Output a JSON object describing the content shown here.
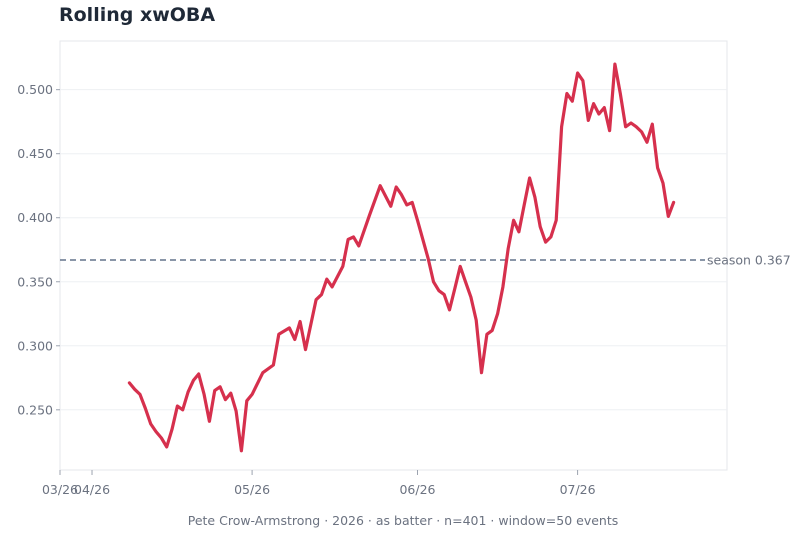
{
  "chart_data": {
    "type": "line",
    "title": "Rolling xwOBA",
    "footer": "Pete Crow-Armstrong · 2026 · as batter · n=401 · window=50 events",
    "x_range": [
      "2026-03-26",
      "2026-07-29"
    ],
    "x_ticks": [
      {
        "date": "2026-03-26",
        "label": "03/26"
      },
      {
        "date": "2026-04-01",
        "label": "04/26"
      },
      {
        "date": "2026-05-01",
        "label": "05/26"
      },
      {
        "date": "2026-06-01",
        "label": "06/26"
      },
      {
        "date": "2026-07-01",
        "label": "07/26"
      }
    ],
    "ylim": [
      0.203,
      0.538
    ],
    "y_ticks": [
      {
        "value": 0.25,
        "label": "0.250"
      },
      {
        "value": 0.3,
        "label": "0.300"
      },
      {
        "value": 0.35,
        "label": "0.350"
      },
      {
        "value": 0.4,
        "label": "0.400"
      },
      {
        "value": 0.45,
        "label": "0.450"
      },
      {
        "value": 0.5,
        "label": "0.500"
      }
    ],
    "grid": "horizontal",
    "reference_line": {
      "value": 0.367,
      "label": "season 0.367",
      "color": "#64748b"
    },
    "series": [
      {
        "color": "#d6304d",
        "points": [
          [
            "2026-04-08",
            0.271
          ],
          [
            "2026-04-09",
            0.266
          ],
          [
            "2026-04-10",
            0.262
          ],
          [
            "2026-04-11",
            0.251
          ],
          [
            "2026-04-12",
            0.239
          ],
          [
            "2026-04-13",
            0.233
          ],
          [
            "2026-04-14",
            0.228
          ],
          [
            "2026-04-15",
            0.221
          ],
          [
            "2026-04-16",
            0.235
          ],
          [
            "2026-04-17",
            0.253
          ],
          [
            "2026-04-18",
            0.25
          ],
          [
            "2026-04-19",
            0.264
          ],
          [
            "2026-04-20",
            0.273
          ],
          [
            "2026-04-21",
            0.278
          ],
          [
            "2026-04-22",
            0.262
          ],
          [
            "2026-04-23",
            0.241
          ],
          [
            "2026-04-24",
            0.265
          ],
          [
            "2026-04-25",
            0.268
          ],
          [
            "2026-04-26",
            0.258
          ],
          [
            "2026-04-27",
            0.263
          ],
          [
            "2026-04-28",
            0.249
          ],
          [
            "2026-04-29",
            0.218
          ],
          [
            "2026-04-30",
            0.257
          ],
          [
            "2026-05-01",
            0.262
          ],
          [
            "2026-05-03",
            0.279
          ],
          [
            "2026-05-05",
            0.285
          ],
          [
            "2026-05-06",
            0.309
          ],
          [
            "2026-05-08",
            0.314
          ],
          [
            "2026-05-09",
            0.305
          ],
          [
            "2026-05-10",
            0.319
          ],
          [
            "2026-05-11",
            0.297
          ],
          [
            "2026-05-13",
            0.336
          ],
          [
            "2026-05-14",
            0.34
          ],
          [
            "2026-05-15",
            0.352
          ],
          [
            "2026-05-16",
            0.346
          ],
          [
            "2026-05-18",
            0.362
          ],
          [
            "2026-05-19",
            0.383
          ],
          [
            "2026-05-20",
            0.385
          ],
          [
            "2026-05-21",
            0.378
          ],
          [
            "2026-05-23",
            0.402
          ],
          [
            "2026-05-25",
            0.425
          ],
          [
            "2026-05-26",
            0.417
          ],
          [
            "2026-05-27",
            0.409
          ],
          [
            "2026-05-28",
            0.424
          ],
          [
            "2026-05-29",
            0.418
          ],
          [
            "2026-05-30",
            0.41
          ],
          [
            "2026-05-31",
            0.412
          ],
          [
            "2026-06-01",
            0.398
          ],
          [
            "2026-06-03",
            0.368
          ],
          [
            "2026-06-04",
            0.35
          ],
          [
            "2026-06-05",
            0.343
          ],
          [
            "2026-06-06",
            0.34
          ],
          [
            "2026-06-07",
            0.328
          ],
          [
            "2026-06-08",
            0.345
          ],
          [
            "2026-06-09",
            0.362
          ],
          [
            "2026-06-10",
            0.35
          ],
          [
            "2026-06-11",
            0.338
          ],
          [
            "2026-06-12",
            0.32
          ],
          [
            "2026-06-13",
            0.279
          ],
          [
            "2026-06-14",
            0.309
          ],
          [
            "2026-06-15",
            0.312
          ],
          [
            "2026-06-16",
            0.325
          ],
          [
            "2026-06-17",
            0.346
          ],
          [
            "2026-06-18",
            0.376
          ],
          [
            "2026-06-19",
            0.398
          ],
          [
            "2026-06-20",
            0.389
          ],
          [
            "2026-06-21",
            0.41
          ],
          [
            "2026-06-22",
            0.431
          ],
          [
            "2026-06-23",
            0.416
          ],
          [
            "2026-06-24",
            0.393
          ],
          [
            "2026-06-25",
            0.381
          ],
          [
            "2026-06-26",
            0.385
          ],
          [
            "2026-06-27",
            0.398
          ],
          [
            "2026-06-28",
            0.471
          ],
          [
            "2026-06-29",
            0.497
          ],
          [
            "2026-06-30",
            0.491
          ],
          [
            "2026-07-01",
            0.513
          ],
          [
            "2026-07-02",
            0.507
          ],
          [
            "2026-07-03",
            0.476
          ],
          [
            "2026-07-04",
            0.489
          ],
          [
            "2026-07-05",
            0.481
          ],
          [
            "2026-07-06",
            0.486
          ],
          [
            "2026-07-07",
            0.468
          ],
          [
            "2026-07-08",
            0.52
          ],
          [
            "2026-07-09",
            0.497
          ],
          [
            "2026-07-10",
            0.471
          ],
          [
            "2026-07-11",
            0.474
          ],
          [
            "2026-07-12",
            0.471
          ],
          [
            "2026-07-13",
            0.467
          ],
          [
            "2026-07-14",
            0.459
          ],
          [
            "2026-07-15",
            0.473
          ],
          [
            "2026-07-16",
            0.439
          ],
          [
            "2026-07-17",
            0.427
          ],
          [
            "2026-07-18",
            0.401
          ],
          [
            "2026-07-19",
            0.412
          ]
        ]
      }
    ]
  }
}
